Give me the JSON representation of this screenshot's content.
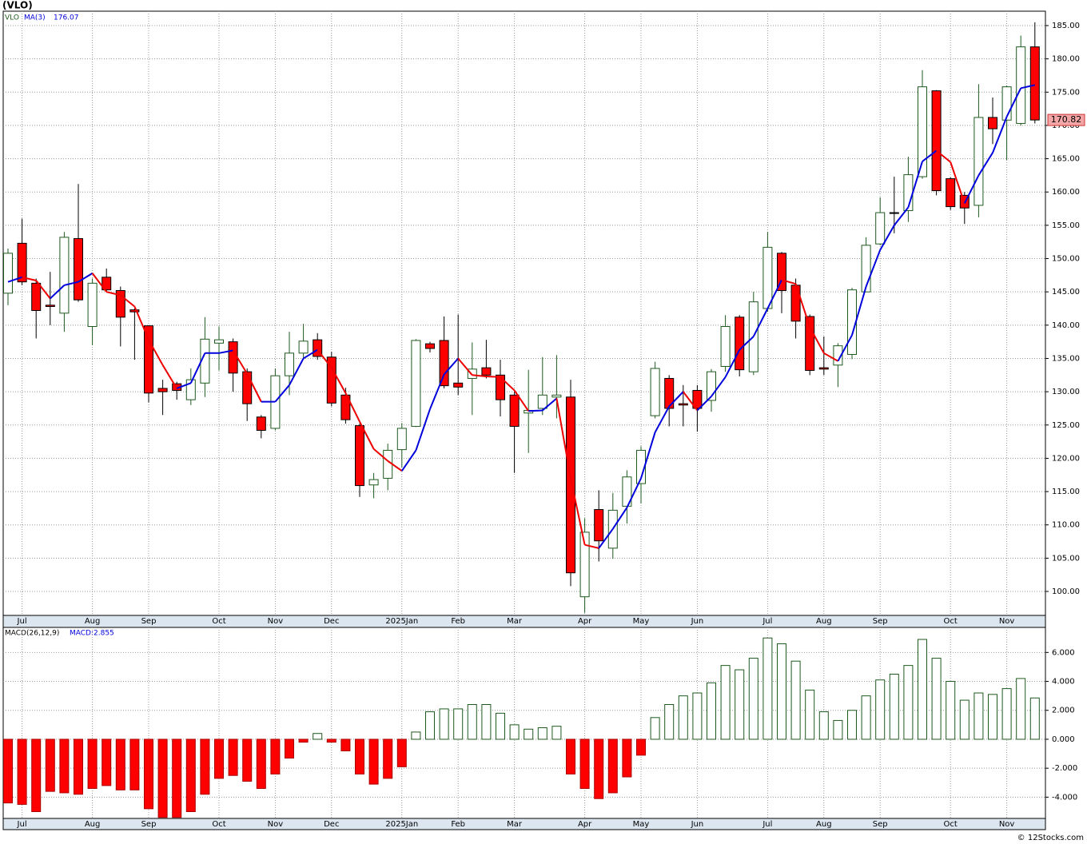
{
  "chart_data": [
    {
      "type": "candlestick",
      "title": "(VLO)",
      "symbol": "VLO",
      "categories": [
        null,
        "Jul",
        null,
        null,
        null,
        null,
        "Aug",
        null,
        null,
        null,
        "Sep",
        null,
        null,
        null,
        null,
        "Oct",
        null,
        null,
        null,
        "Nov",
        null,
        null,
        null,
        "Dec",
        null,
        null,
        null,
        null,
        "2025Jan",
        null,
        null,
        null,
        "Feb",
        null,
        null,
        null,
        "Mar",
        null,
        null,
        null,
        null,
        "Apr",
        null,
        null,
        null,
        "May",
        null,
        null,
        null,
        "Jun",
        null,
        null,
        null,
        null,
        "Jul",
        null,
        null,
        null,
        "Aug",
        null,
        null,
        null,
        "Sep",
        null,
        null,
        null,
        null,
        "Oct",
        null,
        null,
        null,
        "Nov",
        null,
        null
      ],
      "open": [
        144.8,
        152.3,
        146.3,
        143,
        141.8,
        153,
        139.8,
        147.2,
        145.2,
        142.3,
        139.9,
        130.5,
        131.2,
        128.8,
        131.3,
        137.3,
        137.5,
        133,
        126.2,
        124.5,
        132.4,
        135.8,
        137.8,
        135.2,
        129.5,
        124.9,
        116,
        117,
        121.3,
        124.8,
        137.2,
        137.7,
        131.3,
        132,
        133.6,
        132.5,
        129.5,
        126.8,
        127.5,
        129.2,
        129.2,
        99.2,
        112.3,
        106.5,
        112.8,
        116.2,
        126.4,
        132,
        128.2,
        130.2,
        128.7,
        133.8,
        141.2,
        133,
        142.5,
        150.8,
        146,
        141.3,
        133.6,
        134,
        135.6,
        145,
        152.2,
        156.9,
        157.2,
        162.3,
        175.2,
        162,
        159.5,
        158,
        171.2,
        170.8,
        170.3,
        181.8
      ],
      "high": [
        151.5,
        156,
        147,
        148,
        154,
        161.2,
        147,
        148.5,
        145.8,
        142.5,
        140,
        131.8,
        131.5,
        133.5,
        141.2,
        139.8,
        138,
        133.5,
        126.5,
        133.5,
        139,
        140.2,
        138.8,
        136,
        130.6,
        125.2,
        117.8,
        122.2,
        125.3,
        137.9,
        137.5,
        141.3,
        141.6,
        137.4,
        137.8,
        134.8,
        130,
        133.3,
        135.2,
        135.5,
        131.8,
        111,
        115.2,
        114.8,
        118.2,
        121.8,
        134.5,
        132.5,
        131,
        131,
        133.4,
        141.5,
        141.5,
        145,
        154,
        151,
        147,
        141.6,
        138.3,
        137.3,
        145.6,
        153.2,
        159.2,
        162.3,
        165.3,
        178.3,
        175.3,
        162.2,
        160,
        176.2,
        174.2,
        176,
        183.5,
        185.5
      ],
      "low": [
        143,
        146,
        138,
        140,
        139,
        143.5,
        137,
        145,
        136.8,
        134.8,
        128.4,
        126.5,
        128.8,
        128,
        129.2,
        133.2,
        130,
        125.6,
        123,
        124.2,
        129.5,
        134.8,
        134.8,
        127.8,
        125.2,
        114.2,
        114,
        115.2,
        118.6,
        124.7,
        135.9,
        130.5,
        129.5,
        126.5,
        132,
        126.3,
        117.8,
        120.8,
        126.5,
        126,
        100.8,
        96.8,
        104.5,
        104.9,
        110.2,
        113.2,
        126,
        124.8,
        124.8,
        124,
        127,
        133,
        132.3,
        132.5,
        142,
        141.8,
        138,
        132.5,
        132.5,
        130.7,
        134.9,
        145,
        152,
        153.8,
        155.5,
        162,
        159.5,
        157.3,
        155.2,
        156.2,
        167.2,
        164.8,
        170,
        170.3
      ],
      "close": [
        150.8,
        146.5,
        142.2,
        142.8,
        153.2,
        143.8,
        146.3,
        145.3,
        141.2,
        142,
        129.8,
        130,
        130.2,
        131.8,
        137.9,
        137.8,
        132.8,
        128.2,
        124.2,
        132.4,
        135.8,
        137.6,
        135.3,
        128.3,
        125.8,
        115.9,
        116.8,
        121.2,
        124.5,
        137.7,
        136.5,
        130.9,
        130.7,
        133.4,
        132.5,
        128.8,
        124.8,
        127.2,
        129.5,
        129.5,
        102.8,
        108.9,
        107.6,
        112.2,
        117.2,
        121.2,
        133.5,
        127.5,
        128,
        127.5,
        133,
        139.8,
        133.3,
        143.5,
        151.7,
        145.2,
        140.6,
        133.2,
        133.4,
        136.9,
        145.3,
        152,
        156.9,
        156.8,
        162.6,
        175.8,
        160.2,
        157.8,
        157.6,
        171.2,
        169.5,
        175.8,
        181.8,
        170.82
      ],
      "up_color": "#1e5a1e",
      "down_color": "#ff0000",
      "ma": {
        "name": "MA(3)",
        "up_color": "#0000dd",
        "down_color": "#ee0000",
        "values": [
          146.5,
          147.2,
          146.7,
          144,
          146,
          146.5,
          147.8,
          145,
          144.5,
          142.8,
          137.8,
          134,
          130.5,
          131.3,
          135.8,
          135.8,
          136.2,
          132.7,
          128.5,
          128.5,
          131,
          135,
          136.3,
          133.6,
          129.8,
          125.5,
          121.4,
          119.6,
          118.1,
          121.2,
          127.4,
          132.6,
          135,
          132.5,
          132.3,
          132.2,
          130.2,
          127.1,
          127.2,
          129,
          117,
          107,
          106.5,
          109.4,
          112.6,
          117,
          123.9,
          127.8,
          130,
          127.2,
          129.3,
          132.2,
          136.3,
          138.3,
          142.5,
          146.8,
          146.2,
          139.7,
          135.8,
          134.6,
          138.5,
          145.8,
          151.3,
          155,
          157.7,
          164.6,
          166.2,
          164.5,
          158.3,
          162.5,
          165.9,
          171.3,
          175.6,
          176.07
        ]
      },
      "ylim": [
        96.4,
        187.16
      ],
      "yticks": [
        {
          "value": 100,
          "label": "100.00"
        },
        {
          "value": 105,
          "label": "105.00"
        },
        {
          "value": 110,
          "label": "110.00"
        },
        {
          "value": 115,
          "label": "115.00"
        },
        {
          "value": 120,
          "label": "120.00"
        },
        {
          "value": 125,
          "label": "125.00"
        },
        {
          "value": 130,
          "label": "130.00"
        },
        {
          "value": 135,
          "label": "135.00"
        },
        {
          "value": 140,
          "label": "140.00"
        },
        {
          "value": 145,
          "label": "145.00"
        },
        {
          "value": 150,
          "label": "150.00"
        },
        {
          "value": 155,
          "label": "155.00"
        },
        {
          "value": 160,
          "label": "160.00"
        },
        {
          "value": 165,
          "label": "165.00"
        },
        {
          "value": 170,
          "label": "170.00"
        },
        {
          "value": 175,
          "label": "175.00"
        },
        {
          "value": 180,
          "label": "180.00"
        },
        {
          "value": 185,
          "label": "185.00"
        }
      ],
      "grid": true,
      "credit": "© 12Stocks.com"
    },
    {
      "type": "bar",
      "title": "MACD(26,12,9)",
      "legend_label": "MACD:",
      "categories": [
        null,
        "Jul",
        null,
        null,
        null,
        null,
        "Aug",
        null,
        null,
        null,
        "Sep",
        null,
        null,
        null,
        null,
        "Oct",
        null,
        null,
        null,
        "Nov",
        null,
        null,
        null,
        "Dec",
        null,
        null,
        null,
        null,
        "2025Jan",
        null,
        null,
        null,
        "Feb",
        null,
        null,
        null,
        "Mar",
        null,
        null,
        null,
        null,
        "Apr",
        null,
        null,
        null,
        "May",
        null,
        null,
        null,
        "Jun",
        null,
        null,
        null,
        null,
        "Jul",
        null,
        null,
        null,
        "Aug",
        null,
        null,
        null,
        "Sep",
        null,
        null,
        null,
        null,
        "Oct",
        null,
        null,
        null,
        "Nov",
        null,
        null
      ],
      "values": [
        -4.4,
        -4.5,
        -5.0,
        -3.6,
        -3.7,
        -3.8,
        -3.4,
        -3.2,
        -3.5,
        -3.5,
        -4.8,
        -5.4,
        -5.4,
        -5.0,
        -3.8,
        -2.7,
        -2.5,
        -2.9,
        -3.4,
        -2.4,
        -1.3,
        -0.2,
        0.4,
        -0.2,
        -0.8,
        -2.4,
        -3.1,
        -2.7,
        -1.9,
        0.5,
        1.9,
        2.1,
        2.1,
        2.4,
        2.4,
        1.8,
        1.0,
        0.7,
        0.8,
        0.9,
        -2.4,
        -3.4,
        -4.1,
        -3.7,
        -2.6,
        -1.1,
        1.5,
        2.4,
        3.0,
        3.2,
        3.9,
        5.1,
        4.8,
        5.6,
        7.0,
        6.6,
        5.4,
        3.4,
        1.9,
        1.3,
        2.0,
        3.0,
        4.1,
        4.5,
        5.1,
        6.9,
        5.6,
        4.0,
        2.7,
        3.2,
        3.1,
        3.5,
        4.2,
        2.855
      ],
      "pos_color": "#1e5a1e",
      "neg_color": "#ff0000",
      "ylim": [
        -5.47,
        7.73
      ],
      "yticks": [
        {
          "value": -4,
          "label": "-4.000"
        },
        {
          "value": -2,
          "label": "-2.000"
        },
        {
          "value": 0,
          "label": "0.000"
        },
        {
          "value": 2,
          "label": "2.000"
        },
        {
          "value": 4,
          "label": "4.000"
        },
        {
          "value": 6,
          "label": "6.000"
        }
      ],
      "grid": true
    }
  ]
}
